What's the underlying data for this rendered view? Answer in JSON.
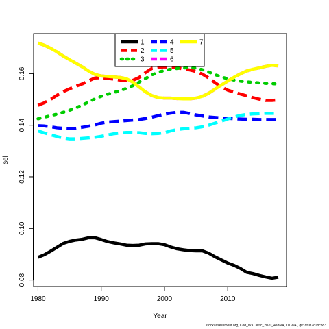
{
  "footer_text": "stockassessment.org, Cod_WKCeltic_2020_4a3NA, r11994 , git: df0b7c1bcb83",
  "chart_data": {
    "type": "line",
    "xlabel": "Year",
    "ylabel": "sel",
    "xlim": [
      1979.3,
      2019.3
    ],
    "ylim": [
      0.0775,
      0.1755
    ],
    "x_ticks": [
      1980,
      1990,
      2000,
      2010
    ],
    "y_ticks": [
      0.08,
      0.1,
      0.12,
      0.14,
      0.16
    ],
    "grid": false,
    "legend_position": "top-center",
    "x": [
      1980,
      1981,
      1982,
      1983,
      1984,
      1985,
      1986,
      1987,
      1988,
      1989,
      1990,
      1991,
      1992,
      1993,
      1994,
      1995,
      1996,
      1997,
      1998,
      1999,
      2000,
      2001,
      2002,
      2003,
      2004,
      2005,
      2006,
      2007,
      2008,
      2009,
      2010,
      2011,
      2012,
      2013,
      2014,
      2015,
      2016,
      2017,
      2018
    ],
    "series": [
      {
        "name": "1",
        "color": "#000000",
        "dash": "solid",
        "values": [
          0.0888,
          0.0898,
          0.0912,
          0.0927,
          0.0942,
          0.095,
          0.0955,
          0.0958,
          0.0964,
          0.0964,
          0.0957,
          0.0949,
          0.0944,
          0.094,
          0.0935,
          0.0934,
          0.0935,
          0.094,
          0.0941,
          0.0941,
          0.0937,
          0.0928,
          0.0921,
          0.0917,
          0.0914,
          0.0913,
          0.0913,
          0.0904,
          0.089,
          0.0878,
          0.0866,
          0.0857,
          0.0845,
          0.083,
          0.0825,
          0.0818,
          0.0812,
          0.0807,
          0.0811
        ]
      },
      {
        "name": "2",
        "color": "#ff0000",
        "dash": "dashed",
        "values": [
          0.1477,
          0.1487,
          0.15,
          0.1516,
          0.153,
          0.1541,
          0.1551,
          0.156,
          0.1572,
          0.1583,
          0.1584,
          0.1582,
          0.1578,
          0.1575,
          0.1573,
          0.1574,
          0.1585,
          0.1604,
          0.162,
          0.1624,
          0.1626,
          0.1625,
          0.1622,
          0.1618,
          0.1614,
          0.1608,
          0.1598,
          0.1583,
          0.1565,
          0.1548,
          0.1536,
          0.1528,
          0.1521,
          0.1514,
          0.1507,
          0.1501,
          0.1496,
          0.1496,
          0.1498
        ]
      },
      {
        "name": "3",
        "color": "#00cc00",
        "dash": "dotted",
        "values": [
          0.1425,
          0.1431,
          0.1437,
          0.1443,
          0.145,
          0.1458,
          0.1467,
          0.1478,
          0.149,
          0.1502,
          0.1512,
          0.152,
          0.1527,
          0.1534,
          0.1543,
          0.1553,
          0.1567,
          0.1581,
          0.1595,
          0.1605,
          0.1612,
          0.1617,
          0.162,
          0.1622,
          0.1623,
          0.1621,
          0.1615,
          0.1606,
          0.1596,
          0.1587,
          0.158,
          0.1575,
          0.1571,
          0.1568,
          0.1566,
          0.1564,
          0.1562,
          0.1561,
          0.156
        ]
      },
      {
        "name": "4",
        "color": "#0000ff",
        "dash": "dashed",
        "values": [
          0.1398,
          0.1397,
          0.1394,
          0.139,
          0.1388,
          0.1387,
          0.1388,
          0.1392,
          0.1396,
          0.1401,
          0.1408,
          0.1412,
          0.1414,
          0.1416,
          0.1418,
          0.142,
          0.1422,
          0.1426,
          0.1431,
          0.1437,
          0.1443,
          0.1447,
          0.145,
          0.145,
          0.1445,
          0.144,
          0.1436,
          0.1432,
          0.143,
          0.1428,
          0.1427,
          0.1425,
          0.1424,
          0.1423,
          0.1423,
          0.1422,
          0.1422,
          0.1422,
          0.1422
        ]
      },
      {
        "name": "5",
        "color": "#00ffff",
        "dash": "dashed",
        "values": [
          0.1378,
          0.137,
          0.1363,
          0.1356,
          0.135,
          0.1347,
          0.1347,
          0.1349,
          0.1351,
          0.1353,
          0.1357,
          0.1362,
          0.1367,
          0.137,
          0.1372,
          0.1372,
          0.1371,
          0.1368,
          0.1367,
          0.1368,
          0.1371,
          0.1378,
          0.1383,
          0.1386,
          0.1388,
          0.139,
          0.1394,
          0.14,
          0.1408,
          0.1416,
          0.1424,
          0.1432,
          0.1438,
          0.1442,
          0.1444,
          0.1445,
          0.1446,
          0.1446,
          0.1446
        ]
      },
      {
        "name": "6",
        "color": "#ff00ff",
        "dash": "longdash",
        "values": [
          0.1718,
          0.171,
          0.1698,
          0.1684,
          0.1668,
          0.1654,
          0.164,
          0.1626,
          0.161,
          0.1597,
          0.1591,
          0.1589,
          0.1587,
          0.1585,
          0.158,
          0.1567,
          0.1548,
          0.1529,
          0.1515,
          0.1507,
          0.1505,
          0.1505,
          0.1503,
          0.1502,
          0.1502,
          0.1505,
          0.1512,
          0.1524,
          0.154,
          0.1556,
          0.1571,
          0.1586,
          0.1599,
          0.161,
          0.1617,
          0.1622,
          0.1628,
          0.1632,
          0.163
        ]
      },
      {
        "name": "7",
        "color": "#ffff00",
        "dash": "solid",
        "values": [
          0.1718,
          0.171,
          0.1698,
          0.1684,
          0.1668,
          0.1654,
          0.164,
          0.1626,
          0.161,
          0.1597,
          0.1591,
          0.1589,
          0.1587,
          0.1585,
          0.158,
          0.1567,
          0.1548,
          0.1529,
          0.1515,
          0.1507,
          0.1505,
          0.1505,
          0.1503,
          0.1502,
          0.1502,
          0.1505,
          0.1512,
          0.1524,
          0.154,
          0.1556,
          0.1571,
          0.1586,
          0.1599,
          0.161,
          0.1617,
          0.1622,
          0.1628,
          0.1632,
          0.163
        ]
      }
    ]
  }
}
